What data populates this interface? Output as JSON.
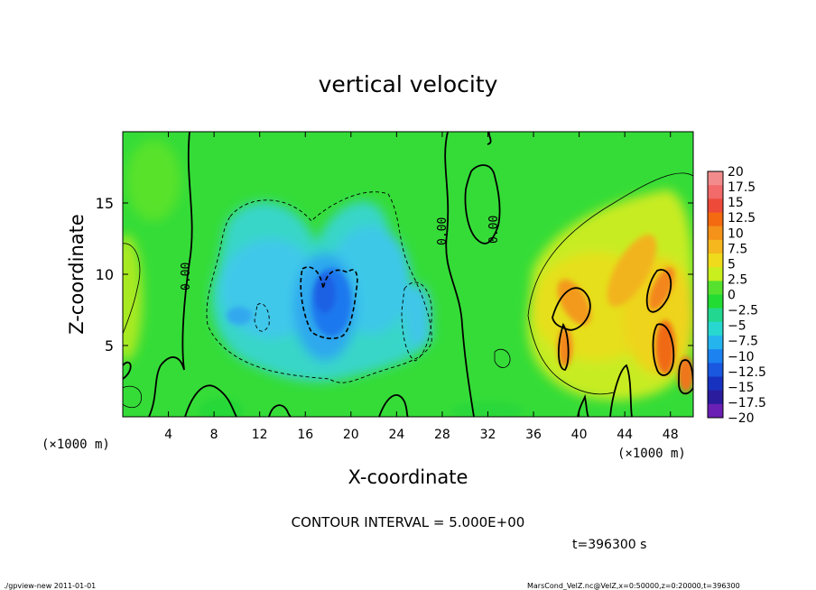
{
  "chart_data": {
    "type": "heatmap",
    "title": "vertical velocity",
    "xlabel": "X-coordinate",
    "ylabel": "Z-coordinate",
    "x_unit_left": "(×1000 m)",
    "x_unit_right": "(×1000 m)",
    "xlim": [
      0,
      50
    ],
    "ylim": [
      0,
      20
    ],
    "x_ticks": [
      4,
      8,
      12,
      16,
      20,
      24,
      28,
      32,
      36,
      40,
      44,
      48
    ],
    "y_ticks": [
      5,
      10,
      15
    ],
    "x_tick_labels": [
      "4",
      "8",
      "12",
      "16",
      "20",
      "24",
      "28",
      "32",
      "36",
      "40",
      "44",
      "48"
    ],
    "y_tick_labels": [
      "5",
      "10",
      "15"
    ],
    "contour_labels": [
      {
        "text": "0.00",
        "x": 5.4,
        "z": 9.2
      },
      {
        "text": "0.00",
        "x": 28.7,
        "z": 13.4
      },
      {
        "text": "0.00",
        "x": 33.0,
        "z": 13.6
      }
    ],
    "colorbar": {
      "labels": [
        "20",
        "17.5",
        "15",
        "12.5",
        "10",
        "7.5",
        "5",
        "2.5",
        "0",
        "−2.5",
        "−5",
        "−7.5",
        "−10",
        "−12.5",
        "−15",
        "−17.5",
        "−20"
      ],
      "colors": [
        "#f28c8c",
        "#f26a6a",
        "#ee4a3a",
        "#f36a10",
        "#f4921a",
        "#f5b61e",
        "#efdb1c",
        "#c9ef1e",
        "#55e12e",
        "#22dc34",
        "#22d890",
        "#28d8d0",
        "#26b4ee",
        "#1c82f0",
        "#1a58e0",
        "#1832c0",
        "#2a1c9c",
        "#6a20b4"
      ]
    },
    "contour_interval": "CONTOUR INTERVAL = 5.000E+00",
    "time": "t=396300 s",
    "field_description": "vertical velocity field: broad near-zero green; negative downdraft region centered near x≈18, z≈8 (blue, min ≈ −10); positive updraft cells near x≈39–49, z≈3–9 (orange, max ≈ 12.5)"
  },
  "footer": {
    "left": "./gpview-new  2011-01-01",
    "right": "MarsCond_VelZ.nc@VelZ,x=0:50000,z=0:20000,t=396300"
  }
}
